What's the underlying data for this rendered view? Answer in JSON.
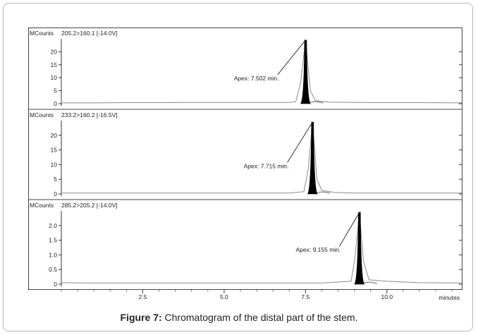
{
  "chart_data": [
    {
      "type": "line",
      "unit_label": "MCounts",
      "transition": "205.2>160.1 [-14.0V]",
      "yticks": [
        "0",
        "5",
        "10",
        "15",
        "20"
      ],
      "ylim": [
        0,
        25
      ],
      "xlim": [
        0,
        12.3
      ],
      "peak": {
        "x": 7.502,
        "y": 24.5,
        "width": 0.3
      },
      "annotation": "Apex: 7.502 min.",
      "annotation_pos": {
        "x": 5.3,
        "y": 9.0
      },
      "x": [
        0,
        1,
        2,
        3,
        4,
        5,
        6,
        7,
        7.2,
        7.35,
        7.502,
        7.65,
        7.8,
        8.2,
        9,
        10,
        11,
        12.3
      ],
      "y": [
        0.3,
        0.3,
        0.4,
        0.4,
        0.5,
        0.5,
        0.5,
        0.5,
        0.8,
        8,
        24.5,
        5,
        1.2,
        0.6,
        0.5,
        0.4,
        0.4,
        0.3
      ]
    },
    {
      "type": "line",
      "unit_label": "MCounts",
      "transition": "233.2>160.2 [-16.5V]",
      "yticks": [
        "0",
        "5",
        "10",
        "15",
        "20"
      ],
      "ylim": [
        0,
        25
      ],
      "xlim": [
        0,
        12.3
      ],
      "peak": {
        "x": 7.715,
        "y": 24.5,
        "width": 0.3
      },
      "annotation": "Apex: 7.715 min.",
      "annotation_pos": {
        "x": 5.6,
        "y": 8.8
      },
      "x": [
        0,
        1,
        2,
        3,
        4,
        5,
        6,
        7,
        7.45,
        7.58,
        7.715,
        7.85,
        8.0,
        8.4,
        9,
        10,
        11,
        12.3
      ],
      "y": [
        0.3,
        0.3,
        0.3,
        0.3,
        0.3,
        0.3,
        0.3,
        0.3,
        0.8,
        8,
        24.5,
        5,
        1.2,
        0.5,
        0.3,
        0.3,
        0.3,
        0.3
      ]
    },
    {
      "type": "line",
      "unit_label": "MCounts",
      "transition": "285.2>205.2 [-14.0V]",
      "yticks": [
        "0",
        "0.5",
        "1.0",
        "1.5",
        "2.0"
      ],
      "ylim": [
        0,
        2.5
      ],
      "xlim": [
        0,
        12.3
      ],
      "peak": {
        "x": 9.155,
        "y": 2.45,
        "width": 0.3
      },
      "annotation": "Apex: 9.155 min.",
      "annotation_pos": {
        "x": 7.2,
        "y": 1.1
      },
      "x": [
        0,
        1,
        2,
        3,
        4,
        5,
        6,
        7,
        8,
        8.9,
        9.02,
        9.155,
        9.28,
        9.45,
        10,
        11,
        12.3
      ],
      "y": [
        0.05,
        0.04,
        0.04,
        0.04,
        0.04,
        0.04,
        0.04,
        0.04,
        0.04,
        0.1,
        0.9,
        2.45,
        0.8,
        0.15,
        0.1,
        0.05,
        0.04
      ]
    }
  ],
  "x_axis": {
    "ticks": [
      2.5,
      5.0,
      7.5,
      10.0
    ],
    "tick_labels": [
      "2.5",
      "5.0",
      "7.5",
      "10.0"
    ],
    "label": "minutes"
  },
  "caption": {
    "label": "Figure 7:",
    "text": " Chromatogram of the distal part of the stem."
  }
}
